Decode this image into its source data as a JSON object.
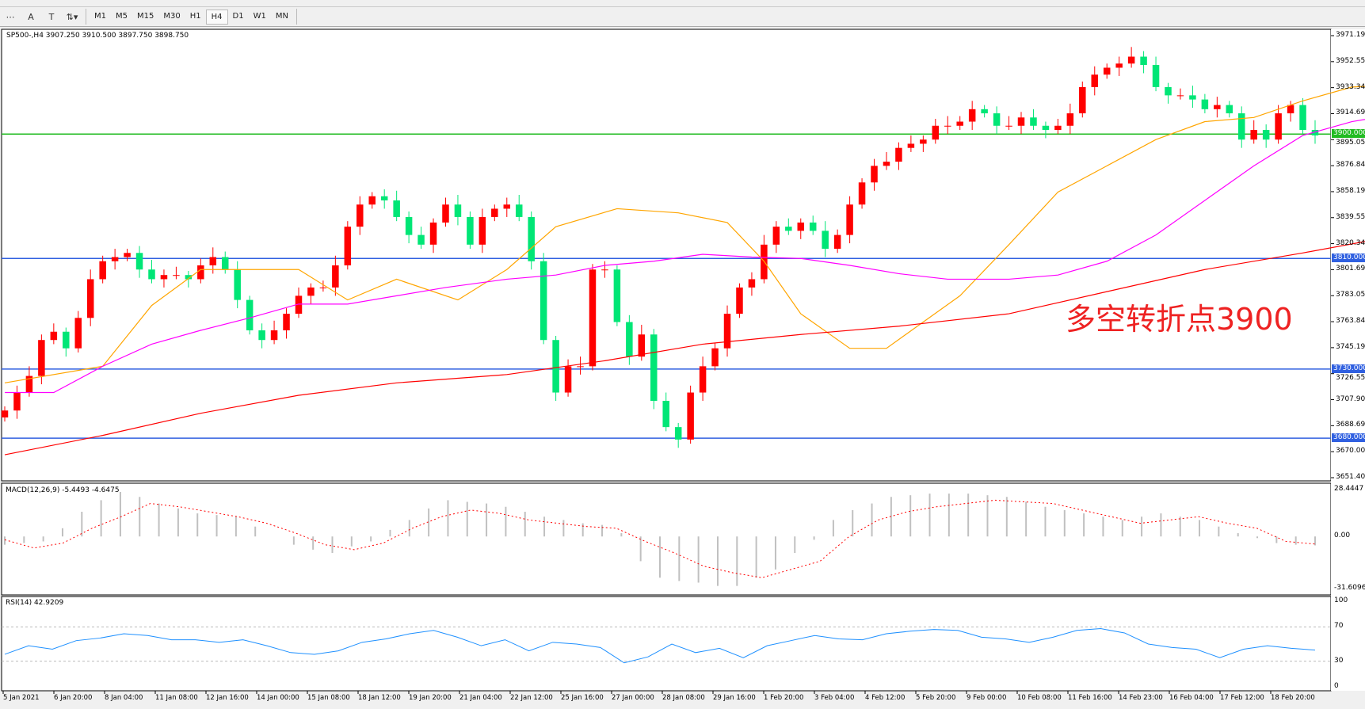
{
  "toolbar": {
    "timeframes": [
      "M1",
      "M5",
      "M15",
      "M30",
      "H1",
      "H4",
      "D1",
      "W1",
      "MN"
    ],
    "active": "H4"
  },
  "chart": {
    "symbol_info": "SP500-,H4  3907.250 3910.500 3897.750 3898.750",
    "annotation": "多空转折点3900",
    "colors": {
      "bull": "#ff0000",
      "bear": "#00e676",
      "ma_fast": "#ffa500",
      "ma_mid": "#ff00ff",
      "ma_slow": "#ff0000",
      "level": "#3060e0",
      "level_3900": "#22bb22",
      "macd_hist": "#c0c0c0",
      "macd_signal": "#ff0000",
      "rsi": "#1e90ff"
    },
    "price_axis": [
      "3971.195",
      "3952.550",
      "3933.340",
      "3914.695",
      "3895.050",
      "3876.840",
      "3858.195",
      "3839.550",
      "3820.340",
      "3801.695",
      "3783.050",
      "3763.840",
      "3745.195",
      "3726.550",
      "3707.905",
      "3688.695",
      "3670.000",
      "3651.405"
    ],
    "price_range": [
      3651.405,
      3971.195
    ],
    "levels": [
      {
        "value": 3900,
        "label": "3900.000"
      },
      {
        "value": 3810,
        "label": "3810.000"
      },
      {
        "value": 3730,
        "label": "3730.000"
      },
      {
        "value": 3680,
        "label": "3680.000"
      }
    ],
    "closes": [
      3700,
      3713,
      3725,
      3751,
      3757,
      3745,
      3767,
      3795,
      3808,
      3811,
      3814,
      3802,
      3795,
      3798,
      3798,
      3795,
      3805,
      3811,
      3802,
      3780,
      3758,
      3751,
      3758,
      3770,
      3783,
      3789,
      3789,
      3805,
      3833,
      3849,
      3855,
      3852,
      3840,
      3827,
      3820,
      3836,
      3849,
      3840,
      3820,
      3840,
      3846,
      3849,
      3840,
      3808,
      3751,
      3713,
      3732,
      3732,
      3802,
      3802,
      3764,
      3739,
      3755,
      3707,
      3688,
      3679,
      3713,
      3732,
      3745,
      3770,
      3789,
      3795,
      3820,
      3833,
      3830,
      3836,
      3830,
      3817,
      3827,
      3849,
      3865,
      3877,
      3880,
      3890,
      3893,
      3896,
      3906,
      3906,
      3909,
      3918,
      3915,
      3906,
      3906,
      3912,
      3906,
      3903,
      3906,
      3915,
      3934,
      3943,
      3948,
      3951,
      3956,
      3950,
      3934,
      3928,
      3928,
      3925,
      3918,
      3921,
      3915,
      3896,
      3903,
      3896,
      3915,
      3921,
      3903,
      3899
    ],
    "ma_fast": [
      [
        0,
        3720
      ],
      [
        8,
        3732
      ],
      [
        12,
        3776
      ],
      [
        16,
        3802
      ],
      [
        20,
        3802
      ],
      [
        24,
        3802
      ],
      [
        28,
        3780
      ],
      [
        32,
        3795
      ],
      [
        37,
        3780
      ],
      [
        41,
        3802
      ],
      [
        45,
        3833
      ],
      [
        50,
        3846
      ],
      [
        55,
        3843
      ],
      [
        59,
        3836
      ],
      [
        62,
        3808
      ],
      [
        65,
        3770
      ],
      [
        69,
        3745
      ],
      [
        72,
        3745
      ],
      [
        75,
        3764
      ],
      [
        78,
        3783
      ],
      [
        82,
        3820
      ],
      [
        86,
        3858
      ],
      [
        90,
        3877
      ],
      [
        94,
        3896
      ],
      [
        98,
        3909
      ],
      [
        102,
        3912
      ],
      [
        106,
        3924
      ],
      [
        110,
        3934
      ],
      [
        116,
        3937
      ],
      [
        120,
        3928
      ],
      [
        124,
        3915
      ]
    ],
    "ma_mid": [
      [
        0,
        3713
      ],
      [
        4,
        3713
      ],
      [
        8,
        3732
      ],
      [
        12,
        3748
      ],
      [
        16,
        3758
      ],
      [
        20,
        3767
      ],
      [
        24,
        3777
      ],
      [
        28,
        3777
      ],
      [
        32,
        3783
      ],
      [
        36,
        3789
      ],
      [
        41,
        3795
      ],
      [
        45,
        3798
      ],
      [
        49,
        3805
      ],
      [
        53,
        3808
      ],
      [
        57,
        3813
      ],
      [
        61,
        3811
      ],
      [
        65,
        3810
      ],
      [
        69,
        3805
      ],
      [
        73,
        3799
      ],
      [
        77,
        3795
      ],
      [
        82,
        3795
      ],
      [
        86,
        3798
      ],
      [
        90,
        3808
      ],
      [
        94,
        3827
      ],
      [
        98,
        3852
      ],
      [
        102,
        3877
      ],
      [
        106,
        3899
      ],
      [
        110,
        3909
      ],
      [
        114,
        3915
      ],
      [
        118,
        3918
      ],
      [
        124,
        3918
      ]
    ],
    "ma_slow": [
      [
        0,
        3668
      ],
      [
        8,
        3682
      ],
      [
        16,
        3698
      ],
      [
        24,
        3711
      ],
      [
        32,
        3720
      ],
      [
        41,
        3726
      ],
      [
        49,
        3736
      ],
      [
        57,
        3748
      ],
      [
        65,
        3755
      ],
      [
        73,
        3761
      ],
      [
        82,
        3770
      ],
      [
        90,
        3786
      ],
      [
        98,
        3802
      ],
      [
        106,
        3814
      ],
      [
        114,
        3827
      ],
      [
        124,
        3838
      ]
    ],
    "macd": {
      "label": "MACD(12,26,9) -5.4493 -4.6475",
      "axis": [
        "28.4447",
        "0.00",
        "-31.6096"
      ],
      "range": [
        -31.6096,
        28.4447
      ],
      "hist": [
        -5,
        -4,
        -3,
        5,
        15,
        22,
        27,
        24,
        20,
        17,
        14,
        13,
        12,
        6,
        0,
        -5,
        -8,
        -10,
        -6,
        -3,
        4,
        10,
        17,
        22,
        21,
        20,
        18,
        15,
        12,
        10,
        8,
        7,
        2,
        -15,
        -25,
        -27,
        -28,
        -30,
        -30,
        -25,
        -20,
        -10,
        -2,
        10,
        16,
        20,
        24,
        25,
        26,
        26,
        26,
        25,
        24,
        21,
        18,
        16,
        14,
        12,
        10,
        12,
        14,
        12,
        10,
        6,
        2,
        -1,
        -4,
        -5,
        -5.4
      ],
      "signal": [
        -2,
        -7,
        -4,
        5,
        12,
        20,
        18,
        15,
        12,
        8,
        2,
        -5,
        -8,
        -4,
        5,
        12,
        16,
        14,
        10,
        8,
        6,
        5,
        -3,
        -10,
        -18,
        -22,
        -25,
        -20,
        -15,
        0,
        10,
        15,
        18,
        20,
        22,
        21,
        20,
        16,
        12,
        8,
        10,
        12,
        8,
        5,
        -3,
        -4.6
      ]
    },
    "rsi": {
      "label": "RSI(14) 42.9209",
      "axis": [
        "100",
        "70",
        "30",
        "0"
      ],
      "range": [
        0,
        100
      ],
      "levels": [
        70,
        30
      ],
      "values": [
        38,
        48,
        44,
        54,
        57,
        62,
        60,
        55,
        55,
        52,
        55,
        48,
        40,
        38,
        42,
        52,
        56,
        62,
        66,
        58,
        48,
        55,
        42,
        52,
        50,
        46,
        28,
        35,
        50,
        40,
        45,
        34,
        48,
        54,
        60,
        56,
        55,
        62,
        65,
        67,
        66,
        58,
        56,
        52,
        58,
        66,
        68,
        63,
        50,
        46,
        44,
        34,
        44,
        48,
        45,
        42.92
      ]
    },
    "time_axis": [
      "5 Jan 2021",
      "6 Jan 20:00",
      "8 Jan 04:00",
      "11 Jan 08:00",
      "12 Jan 16:00",
      "14 Jan 00:00",
      "15 Jan 08:00",
      "18 Jan 12:00",
      "19 Jan 20:00",
      "21 Jan 04:00",
      "22 Jan 12:00",
      "25 Jan 16:00",
      "27 Jan 00:00",
      "28 Jan 08:00",
      "29 Jan 16:00",
      "1 Feb 20:00",
      "3 Feb 04:00",
      "4 Feb 12:00",
      "5 Feb 20:00",
      "9 Feb 00:00",
      "10 Feb 08:00",
      "11 Feb 16:00",
      "14 Feb 23:00",
      "16 Feb 04:00",
      "17 Feb 12:00",
      "18 Feb 20:00"
    ]
  }
}
